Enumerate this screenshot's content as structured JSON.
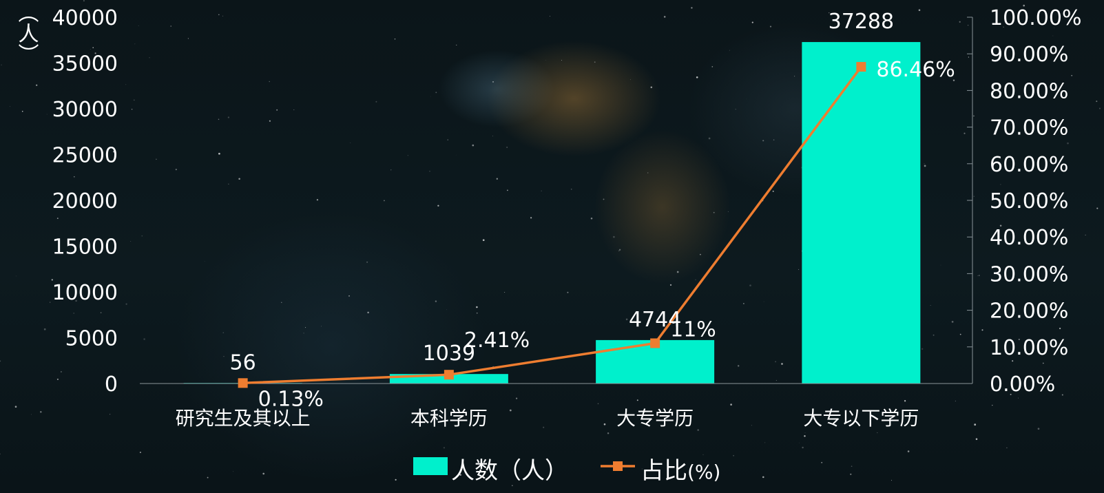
{
  "chart_data": {
    "type": "bar",
    "categories": [
      "研究生及其以上",
      "本科学历",
      "大专学历",
      "大专以下学历"
    ],
    "series": [
      {
        "name": "人数（人）",
        "type": "bar",
        "axis": "left",
        "values": [
          56,
          1039,
          4744,
          37288
        ],
        "color": "#00f0cc"
      },
      {
        "name": "占比(%)",
        "type": "line",
        "axis": "right",
        "values": [
          0.13,
          2.41,
          11,
          86.46
        ],
        "color": "#ee7d30"
      }
    ],
    "bar_labels": [
      "56",
      "1039",
      "4744",
      "37288"
    ],
    "line_labels": [
      "0.13%",
      "2.41%",
      "11%",
      "86.46%"
    ],
    "ylabel": "（人）",
    "ylim": [
      0,
      40000
    ],
    "yticks": [
      "0",
      "5000",
      "10000",
      "15000",
      "20000",
      "25000",
      "30000",
      "35000",
      "40000"
    ],
    "y2lim": [
      0,
      100
    ],
    "y2ticks": [
      "0.00%",
      "10.00%",
      "20.00%",
      "30.00%",
      "40.00%",
      "50.00%",
      "60.00%",
      "70.00%",
      "80.00%",
      "90.00%",
      "100.00%"
    ],
    "grid": false,
    "legend": "bottom-center",
    "legend_labels": {
      "bar": "人数（人）",
      "bar_main": "人数（",
      "bar_person": "人",
      "bar_close": "）",
      "line_main": "占比",
      "line_unit": "(%)"
    }
  }
}
